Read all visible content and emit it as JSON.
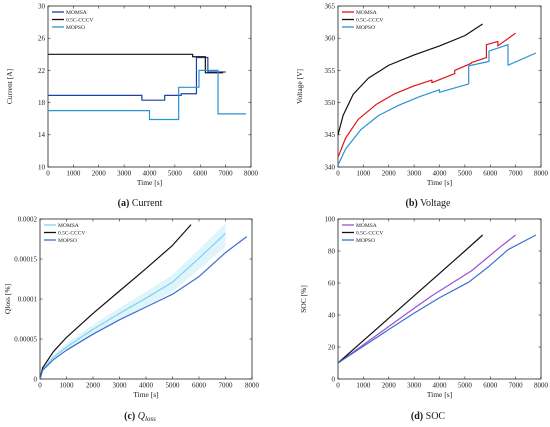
{
  "chart_data": [
    {
      "id": "current",
      "type": "line",
      "caption_letter": "(a)",
      "caption_text": "Current",
      "xlabel": "Time [s]",
      "ylabel": "Current [A]",
      "xlim": [
        0,
        8000
      ],
      "ylim": [
        10,
        30
      ],
      "xticks": [
        0,
        1000,
        2000,
        3000,
        4000,
        5000,
        6000,
        7000,
        8000
      ],
      "yticks": [
        10,
        14,
        18,
        22,
        26,
        30
      ],
      "xtick_labels": [
        "0",
        "1000",
        "2000",
        "3000",
        "4000",
        "5000",
        "6000",
        "7000",
        "8000"
      ],
      "ytick_labels": [
        "10",
        "14",
        "18",
        "22",
        "26",
        "30"
      ],
      "legend_position": "top-left",
      "series": [
        {
          "name": "MOMSA",
          "color": "#1f3fa8",
          "x": [
            0,
            3700,
            3700,
            4600,
            4600,
            5250,
            5250,
            5850,
            5850,
            6300,
            6300,
            7000
          ],
          "y": [
            18.9,
            18.9,
            18.3,
            18.3,
            18.9,
            18.9,
            19.1,
            19.1,
            23.6,
            23.6,
            21.8,
            21.8
          ]
        },
        {
          "name": "0.5C-CCCV",
          "color": "#111111",
          "x": [
            0,
            5700,
            5700,
            6200,
            6200,
            6900
          ],
          "y": [
            24.0,
            24.0,
            23.7,
            23.7,
            21.7,
            21.7
          ]
        },
        {
          "name": "MOPSO",
          "color": "#2a93d5",
          "x": [
            0,
            4000,
            4000,
            5150,
            5150,
            5950,
            5950,
            6700,
            6700,
            7800
          ],
          "y": [
            17.0,
            17.0,
            15.9,
            15.9,
            19.9,
            19.9,
            22.0,
            22.0,
            16.6,
            16.6
          ]
        }
      ]
    },
    {
      "id": "voltage",
      "type": "line",
      "caption_letter": "(b)",
      "caption_text": "Voltage",
      "xlabel": "Time [s]",
      "ylabel": "Voltage [V]",
      "xlim": [
        0,
        8000
      ],
      "ylim": [
        340,
        365
      ],
      "xticks": [
        0,
        1000,
        2000,
        3000,
        4000,
        5000,
        6000,
        7000,
        8000
      ],
      "yticks": [
        340,
        345,
        350,
        355,
        360,
        365
      ],
      "xtick_labels": [
        "0",
        "1000",
        "2000",
        "3000",
        "4000",
        "5000",
        "6000",
        "7000",
        "8000"
      ],
      "ytick_labels": [
        "340",
        "345",
        "350",
        "355",
        "360",
        "365"
      ],
      "legend_position": "top-left",
      "series": [
        {
          "name": "MOMSA",
          "color": "#e0141c",
          "x": [
            0,
            300,
            800,
            1500,
            2200,
            3000,
            3700,
            3700,
            4600,
            4600,
            5250,
            5250,
            5850,
            5850,
            6300,
            6300,
            7000
          ],
          "y": [
            341.5,
            344.5,
            347.4,
            349.7,
            351.3,
            352.6,
            353.5,
            353.1,
            354.5,
            355.0,
            356.1,
            356.2,
            357.0,
            359.0,
            359.5,
            358.8,
            360.8
          ]
        },
        {
          "name": "0.5C-CCCV",
          "color": "#111111",
          "x": [
            0,
            200,
            600,
            1200,
            2000,
            3000,
            4000,
            5000,
            5700
          ],
          "y": [
            345.0,
            348.0,
            351.3,
            353.8,
            355.8,
            357.4,
            358.8,
            360.4,
            362.2
          ]
        },
        {
          "name": "MOPSO",
          "color": "#2a93d5",
          "x": [
            0,
            300,
            900,
            1600,
            2400,
            3200,
            4000,
            4000,
            5150,
            5150,
            5950,
            5950,
            6700,
            6700,
            7800
          ],
          "y": [
            340.3,
            342.8,
            345.8,
            348.0,
            349.6,
            350.9,
            352.0,
            351.6,
            352.9,
            355.7,
            356.4,
            358.0,
            359.0,
            355.8,
            357.7
          ]
        }
      ]
    },
    {
      "id": "qloss",
      "type": "line",
      "caption_letter": "(c)",
      "caption_text": "Q",
      "caption_sub": "loss",
      "xlabel": "Time [s]",
      "ylabel": "Qloss [%]",
      "xlim": [
        0,
        8000
      ],
      "ylim": [
        0,
        0.0002
      ],
      "xticks": [
        0,
        1000,
        2000,
        3000,
        4000,
        5000,
        6000,
        7000,
        8000
      ],
      "yticks": [
        0,
        5e-05,
        0.0001,
        0.00015,
        0.0002
      ],
      "xtick_labels": [
        "0",
        "1000",
        "2000",
        "3000",
        "4000",
        "5000",
        "6000",
        "7000",
        "8000"
      ],
      "ytick_labels": [
        "0",
        "0.00005",
        "0.0001",
        "0.00015",
        "0.0002"
      ],
      "legend_position": "top-left",
      "series": [
        {
          "name": "MOMSA",
          "color": "#7fd3f0",
          "x": [
            0,
            100,
            500,
            1000,
            2000,
            3000,
            4000,
            5000,
            6000,
            7000
          ],
          "y": [
            0,
            1.2e-05,
            2.7e-05,
            4e-05,
            6.2e-05,
            8.2e-05,
            0.000101,
            0.000121,
            0.000151,
            0.000182
          ]
        },
        {
          "name": "0.5C-CCCV",
          "color": "#111111",
          "x": [
            0,
            100,
            500,
            1000,
            2000,
            3000,
            4000,
            5000,
            5700
          ],
          "y": [
            0,
            1.4e-05,
            3.4e-05,
            5.2e-05,
            8.2e-05,
            0.00011,
            0.000138,
            0.000167,
            0.000193
          ]
        },
        {
          "name": "MOPSO",
          "color": "#3a6fd0",
          "x": [
            0,
            100,
            500,
            1000,
            2000,
            3000,
            4000,
            5000,
            6000,
            7000,
            7800
          ],
          "y": [
            0,
            1.1e-05,
            2.4e-05,
            3.6e-05,
            5.6e-05,
            7.4e-05,
            9e-05,
            0.000106,
            0.000128,
            0.000158,
            0.000178
          ]
        }
      ]
    },
    {
      "id": "soc",
      "type": "line",
      "caption_letter": "(d)",
      "caption_text": "SOC",
      "xlabel": "Time [s]",
      "ylabel": "SOC [%]",
      "xlim": [
        0,
        8000
      ],
      "ylim": [
        0,
        100
      ],
      "xticks": [
        0,
        1000,
        2000,
        3000,
        4000,
        5000,
        6000,
        7000,
        8000
      ],
      "yticks": [
        0,
        20,
        40,
        60,
        80,
        100
      ],
      "xtick_labels": [
        "0",
        "1000",
        "2000",
        "3000",
        "4000",
        "5000",
        "6000",
        "7000",
        "8000"
      ],
      "ytick_labels": [
        "0",
        "20",
        "40",
        "60",
        "80",
        "100"
      ],
      "legend_position": "top-left",
      "series": [
        {
          "name": "MOMSA",
          "color": "#9b4fd6",
          "x": [
            0,
            1000,
            2000,
            3000,
            3700,
            4600,
            5250,
            5850,
            6300,
            7000
          ],
          "y": [
            10,
            21.4,
            32.8,
            44.2,
            52.0,
            61.0,
            67.5,
            75.3,
            81.3,
            90
          ]
        },
        {
          "name": "0.5C-CCCV",
          "color": "#111111",
          "x": [
            0,
            1000,
            2000,
            3000,
            4000,
            5000,
            5700
          ],
          "y": [
            10,
            24.0,
            38.0,
            52.0,
            66.0,
            80.0,
            90
          ]
        },
        {
          "name": "MOPSO",
          "color": "#3a6fd0",
          "x": [
            0,
            1000,
            2000,
            3000,
            4000,
            5150,
            5950,
            6700,
            7800
          ],
          "y": [
            10,
            20.5,
            30.9,
            41.2,
            50.8,
            60.5,
            70.4,
            80.8,
            90
          ]
        }
      ]
    }
  ]
}
